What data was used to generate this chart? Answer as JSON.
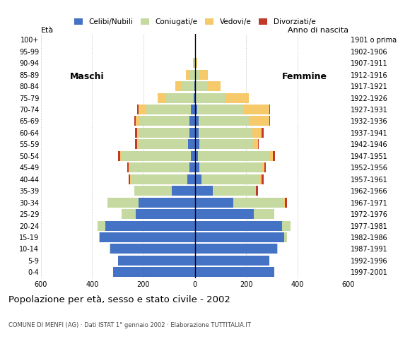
{
  "age_groups": [
    "0-4",
    "5-9",
    "10-14",
    "15-19",
    "20-24",
    "25-29",
    "30-34",
    "35-39",
    "40-44",
    "45-49",
    "50-54",
    "55-59",
    "60-64",
    "65-69",
    "70-74",
    "75-79",
    "80-84",
    "85-89",
    "90-94",
    "95-99",
    "100+"
  ],
  "birth_years": [
    "1997-2001",
    "1992-1996",
    "1987-1991",
    "1982-1986",
    "1977-1981",
    "1972-1976",
    "1967-1971",
    "1962-1966",
    "1957-1961",
    "1952-1956",
    "1947-1951",
    "1942-1946",
    "1937-1941",
    "1932-1936",
    "1927-1931",
    "1922-1926",
    "1917-1921",
    "1912-1916",
    "1907-1911",
    "1902-1906",
    "1901 o prima"
  ],
  "colors": {
    "celibe": "#4472c4",
    "coniugato": "#c5d9a0",
    "vedovo": "#f6c96b",
    "divorziato": "#c0392b"
  },
  "males": {
    "celibe": [
      320,
      300,
      330,
      370,
      350,
      230,
      220,
      90,
      30,
      20,
      15,
      25,
      20,
      20,
      15,
      5,
      2,
      0,
      0,
      0,
      0
    ],
    "coniugato": [
      0,
      0,
      2,
      5,
      30,
      55,
      120,
      145,
      220,
      235,
      270,
      195,
      200,
      195,
      175,
      110,
      50,
      20,
      5,
      0,
      0
    ],
    "vedovo": [
      0,
      0,
      0,
      0,
      0,
      0,
      2,
      2,
      2,
      3,
      5,
      5,
      5,
      15,
      30,
      30,
      25,
      15,
      2,
      0,
      0
    ],
    "divorziato": [
      0,
      0,
      0,
      0,
      0,
      0,
      0,
      0,
      5,
      5,
      8,
      8,
      8,
      5,
      5,
      0,
      0,
      0,
      0,
      0,
      0
    ]
  },
  "females": {
    "nubile": [
      310,
      290,
      320,
      350,
      340,
      230,
      150,
      70,
      25,
      18,
      12,
      18,
      15,
      15,
      10,
      5,
      2,
      2,
      0,
      0,
      0
    ],
    "coniugata": [
      0,
      0,
      3,
      10,
      35,
      80,
      200,
      165,
      230,
      245,
      280,
      210,
      210,
      195,
      180,
      115,
      45,
      20,
      5,
      0,
      0
    ],
    "vedova": [
      0,
      0,
      0,
      0,
      0,
      0,
      2,
      3,
      5,
      8,
      12,
      18,
      35,
      80,
      100,
      90,
      55,
      30,
      5,
      2,
      0
    ],
    "divorziata": [
      0,
      0,
      0,
      0,
      0,
      0,
      8,
      8,
      8,
      5,
      8,
      5,
      8,
      5,
      5,
      0,
      0,
      0,
      0,
      0,
      0
    ]
  },
  "xlim": 600,
  "title": "Popolazione per età, sesso e stato civile - 2002",
  "subtitle": "COMUNE DI MENFI (AG) · Dati ISTAT 1° gennaio 2002 · Elaborazione TUTTITALIA.IT",
  "legend_labels": [
    "Celibi/Nubili",
    "Coniugati/e",
    "Vedovi/e",
    "Divorziati/e"
  ],
  "xlabel_maschi": "Maschi",
  "xlabel_femmine": "Femmine",
  "eta_label": "Età",
  "anno_label": "Anno di nascita"
}
